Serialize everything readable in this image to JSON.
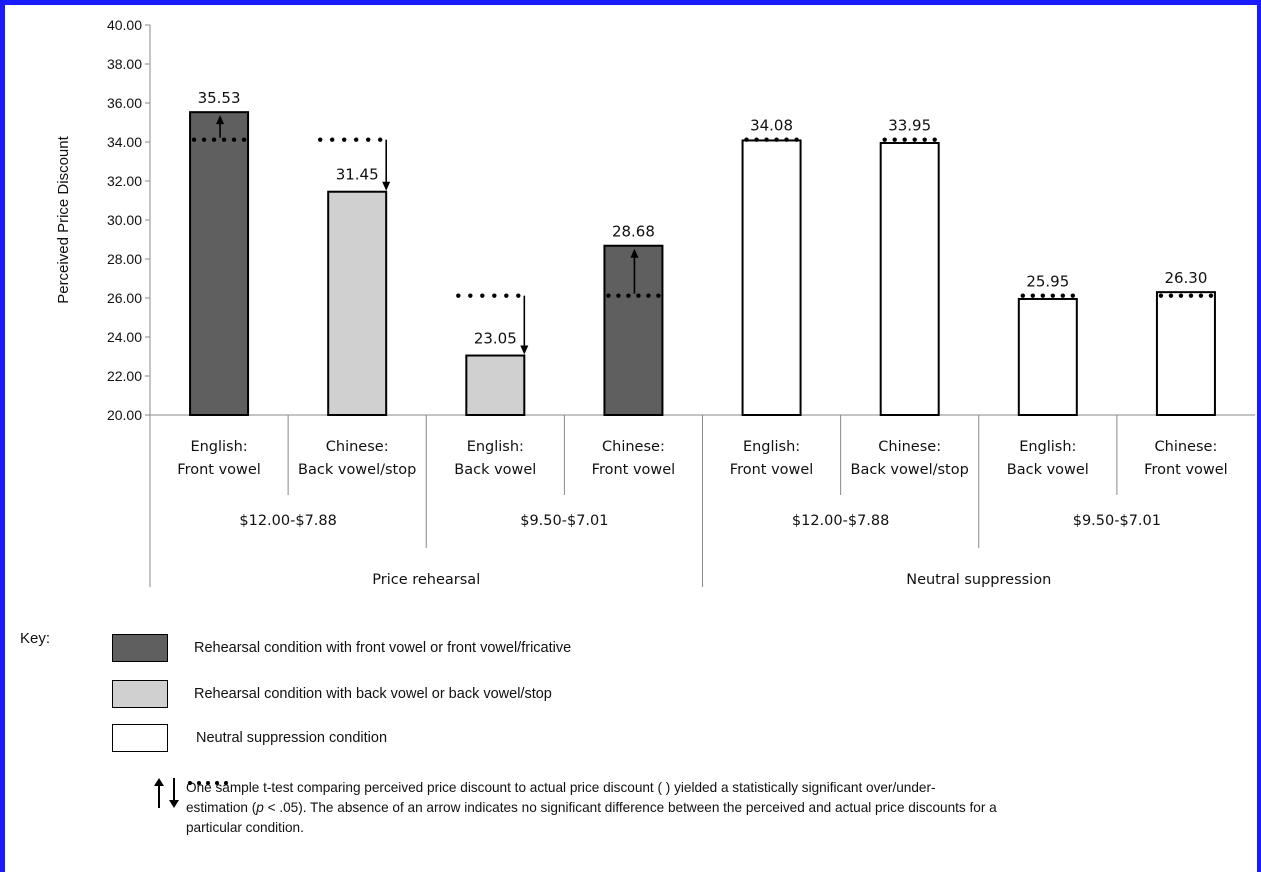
{
  "chart_data": {
    "type": "bar",
    "ylabel": "Perceived Price Discount",
    "ylim": [
      20,
      40
    ],
    "yticks": [
      "20.00",
      "22.00",
      "24.00",
      "26.00",
      "28.00",
      "30.00",
      "32.00",
      "34.00",
      "36.00",
      "38.00",
      "40.00"
    ],
    "bars": [
      {
        "label1": "English:",
        "label2": "Front vowel",
        "value": 35.53,
        "value_label": "35.53",
        "condition": "front",
        "actual": 34.12,
        "arrow": "up"
      },
      {
        "label1": "Chinese:",
        "label2": "Back vowel/stop",
        "value": 31.45,
        "value_label": "31.45",
        "condition": "back",
        "actual": 34.12,
        "arrow": "down"
      },
      {
        "label1": "English:",
        "label2": "Back vowel",
        "value": 23.05,
        "value_label": "23.05",
        "condition": "back",
        "actual": 26.12,
        "arrow": "down"
      },
      {
        "label1": "Chinese:",
        "label2": "Front vowel",
        "value": 28.68,
        "value_label": "28.68",
        "condition": "front",
        "actual": 26.12,
        "arrow": "up"
      },
      {
        "label1": "English:",
        "label2": "Front vowel",
        "value": 34.08,
        "value_label": "34.08",
        "condition": "neutral",
        "actual": 34.12,
        "arrow": "none"
      },
      {
        "label1": "Chinese:",
        "label2": "Back vowel/stop",
        "value": 33.95,
        "value_label": "33.95",
        "condition": "neutral",
        "actual": 34.12,
        "arrow": "none"
      },
      {
        "label1": "English:",
        "label2": "Back vowel",
        "value": 25.95,
        "value_label": "25.95",
        "condition": "neutral",
        "actual": 26.12,
        "arrow": "none"
      },
      {
        "label1": "Chinese:",
        "label2": "Front vowel",
        "value": 26.3,
        "value_label": "26.30",
        "condition": "neutral",
        "actual": 26.12,
        "arrow": "none"
      }
    ],
    "price_groups": [
      "$12.00-$7.88",
      "$9.50-$7.01",
      "$12.00-$7.88",
      "$9.50-$7.01"
    ],
    "conditions": [
      "Price rehearsal",
      "Neutral suppression"
    ],
    "colors": {
      "front": "#5f5f5f",
      "back": "#d0d0d0",
      "neutral": "#ffffff",
      "border": "#000000",
      "frame": "#1a1aff"
    }
  },
  "key": {
    "title": "Key:",
    "front": "Rehearsal condition with front vowel or front vowel/fricative",
    "back": "Rehearsal condition with back vowel or back vowel/stop",
    "neutral": "Neutral suppression condition",
    "note_a": "One sample t-test comparing perceived price discount to actual price discount (",
    "note_b": " ) yielded a statistically significant over/under-",
    "note_c": "estimation (",
    "note_p": "p",
    "note_d": " < .05). The absence of an arrow indicates no significant difference between the perceived and actual price discounts for a",
    "note_e": "particular condition."
  }
}
